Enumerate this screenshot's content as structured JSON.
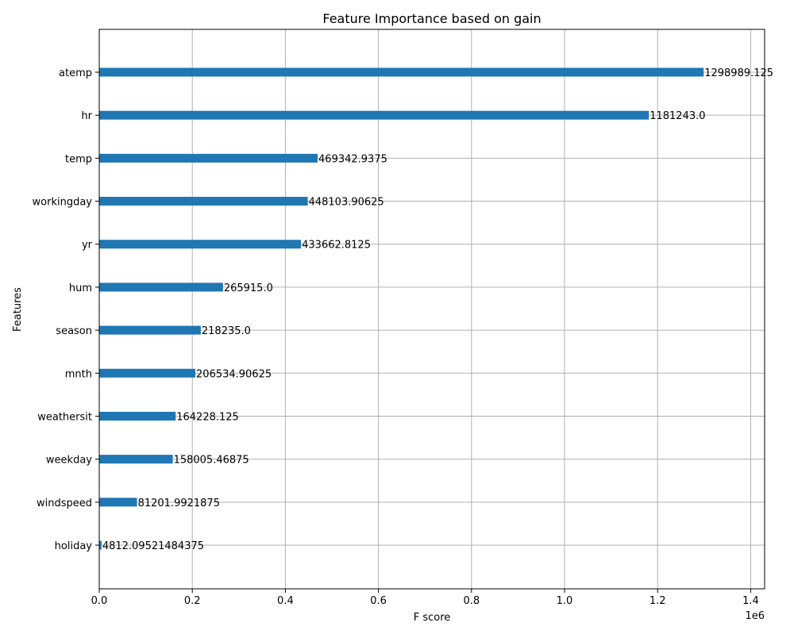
{
  "chart_data": {
    "type": "bar",
    "orientation": "horizontal",
    "title": "Feature Importance based on gain",
    "xlabel": "F score",
    "ylabel": "Features",
    "x_scale_label": "1e6",
    "xlim": [
      0,
      1430000
    ],
    "x_ticks": [
      0,
      200000,
      400000,
      600000,
      800000,
      1000000,
      1200000,
      1400000
    ],
    "x_tick_labels": [
      "0.0",
      "0.2",
      "0.4",
      "0.6",
      "0.8",
      "1.0",
      "1.2",
      "1.4"
    ],
    "grid": true,
    "bar_color": "#1f77b4",
    "categories": [
      "atemp",
      "hr",
      "temp",
      "workingday",
      "yr",
      "hum",
      "season",
      "mnth",
      "weathersit",
      "weekday",
      "windspeed",
      "holiday"
    ],
    "values": [
      1298989.125,
      1181243.0,
      469342.9375,
      448103.90625,
      433662.8125,
      265915.0,
      218235.0,
      206534.90625,
      164228.125,
      158005.46875,
      81201.9921875,
      4812.09521484375
    ],
    "value_labels": [
      "1298989.125",
      "1181243.0",
      "469342.9375",
      "448103.90625",
      "433662.8125",
      "265915.0",
      "218235.0",
      "206534.90625",
      "164228.125",
      "158005.46875",
      "81201.9921875",
      "4812.09521484375"
    ]
  }
}
